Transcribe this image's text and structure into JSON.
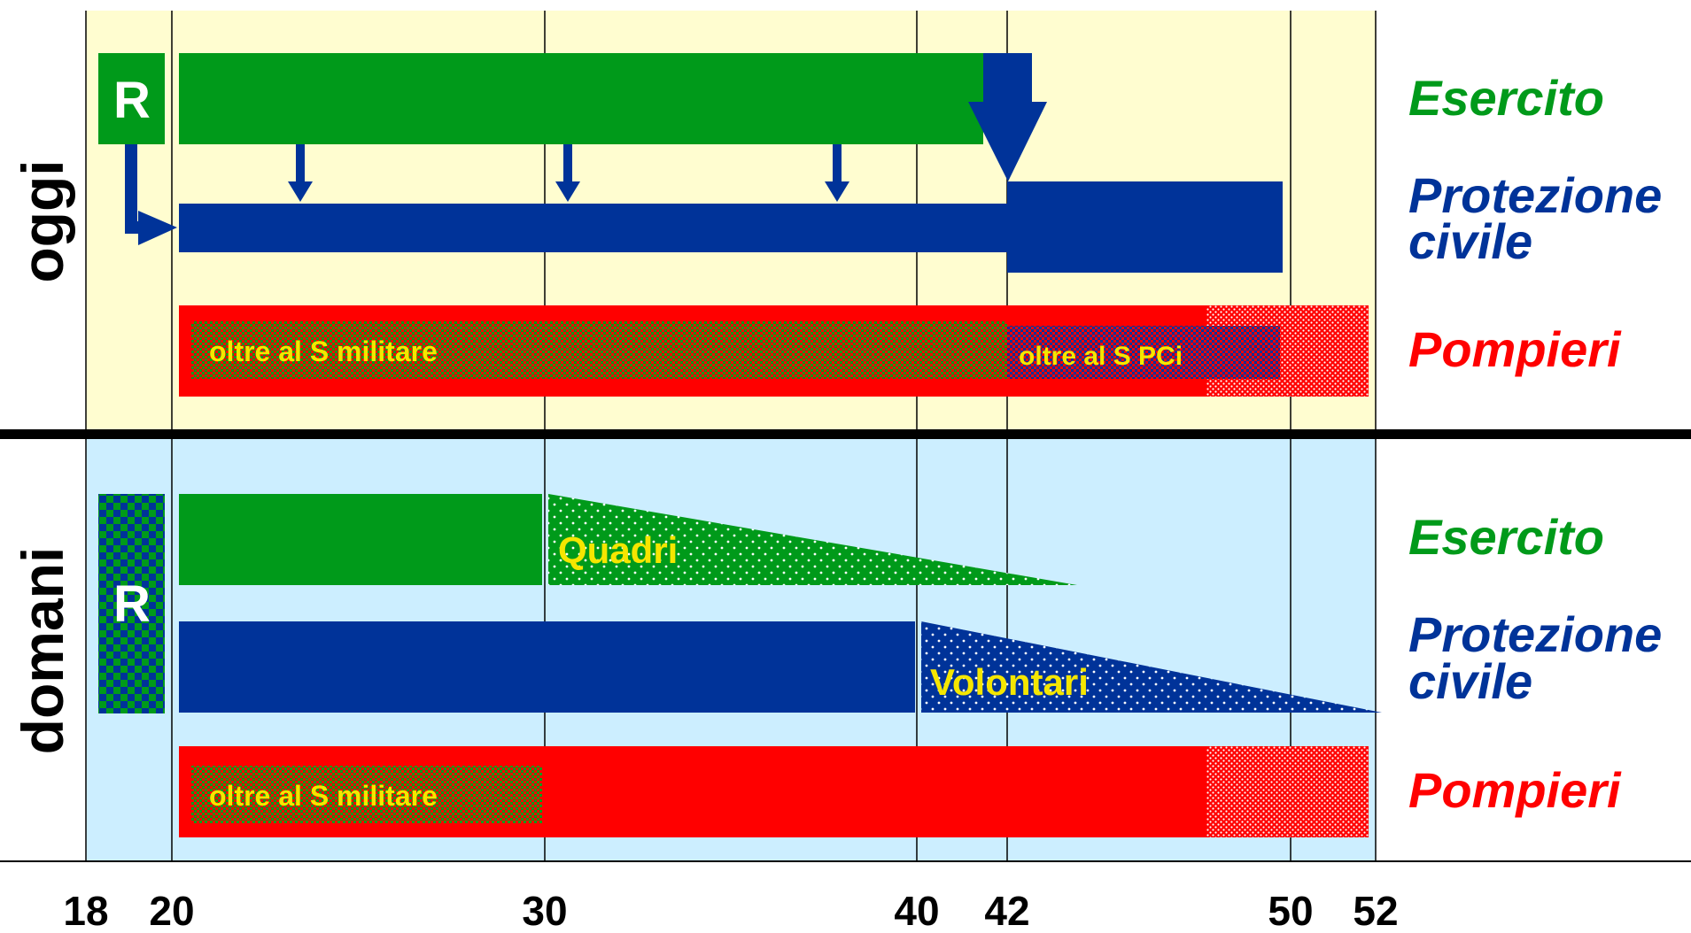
{
  "sections": {
    "oggi": {
      "title": "oggi"
    },
    "domani": {
      "title": "domani"
    }
  },
  "labels": {
    "esercito": "Esercito",
    "protezione_line1": "Protezione",
    "protezione_line2": "civile",
    "pompieri": "Pompieri"
  },
  "recruitment_label": "R",
  "bar_texts": {
    "oltre_militare": "oltre al S militare",
    "oltre_pci": "oltre al S PCi",
    "quadri": "Quadri",
    "volontari": "Volontari"
  },
  "axis": {
    "ticks": [
      "18",
      "20",
      "30",
      "40",
      "42",
      "50",
      "52"
    ]
  },
  "colors": {
    "esercito": "#009a1a",
    "protezione": "#003399",
    "pompieri": "#ff0000",
    "oggi_bg": "#fffdd0",
    "domani_bg": "#cceeff",
    "bar_text": "#f5e600"
  }
}
